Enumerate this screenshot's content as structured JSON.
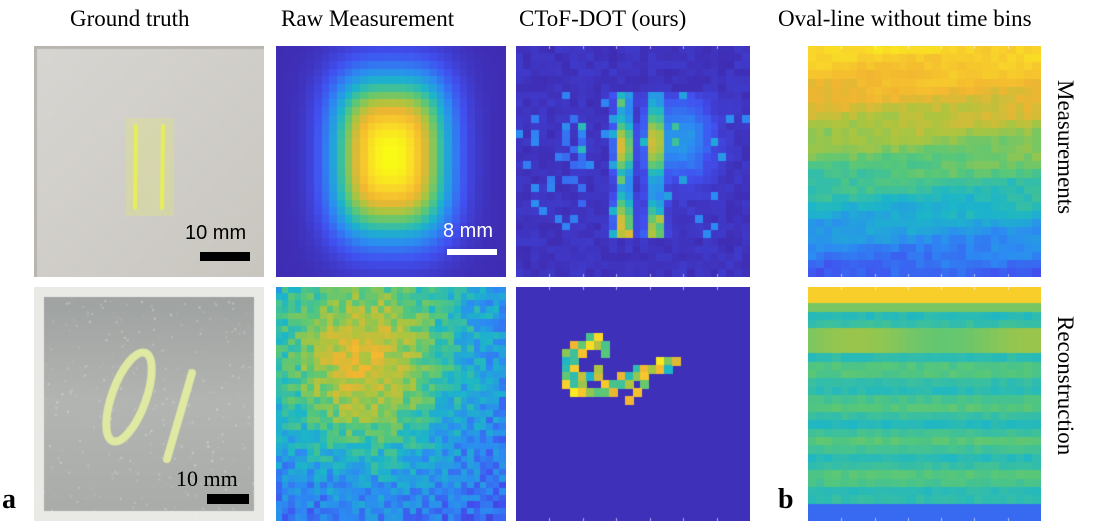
{
  "column_titles": {
    "ground_truth": "Ground truth",
    "raw_measurement": "Raw Measurement",
    "ctof_dot": "CToF-DOT (ours)",
    "oval_line": "Oval-line without time bins"
  },
  "scale_bars": {
    "top_ground_truth": "10 mm",
    "top_raw": "8 mm",
    "bottom_ground_truth": "10 mm"
  },
  "side_labels": {
    "measurements": "Measurements",
    "reconstruction": "Reconstruction"
  },
  "panel_tags": {
    "a": "a",
    "b": "b"
  },
  "colors": {
    "background_dark_blue": "#3a2fb0",
    "background_white": "#ffffff",
    "colormap": [
      "#3e26a8",
      "#4150f0",
      "#2c8bf2",
      "#1cb6c8",
      "#56c77a",
      "#aac540",
      "#f2b531",
      "#f9d42a",
      "#f9fb15"
    ]
  }
}
